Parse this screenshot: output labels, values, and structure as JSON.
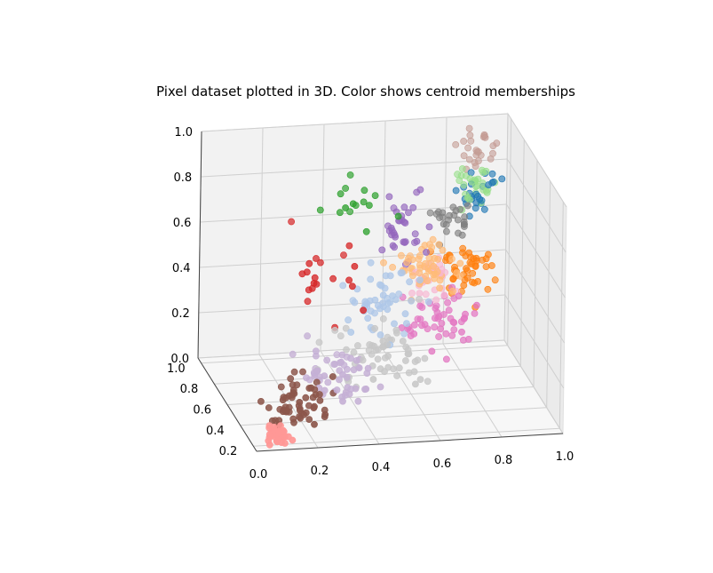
{
  "chart_data": {
    "type": "scatter",
    "projection": "3d",
    "title": "Pixel dataset plotted in 3D. Color shows centroid memberships",
    "xlabel": "",
    "ylabel": "",
    "zlabel": "",
    "grid": true,
    "xlim": [
      0.0,
      1.0
    ],
    "ylim": [
      0.15,
      1.05
    ],
    "zlim": [
      0.0,
      1.0
    ],
    "xticks": [
      "0.0",
      "0.2",
      "0.4",
      "0.6",
      "0.8",
      "1.0"
    ],
    "yticks": [
      "0.2",
      "0.4",
      "0.6",
      "0.8",
      "1.0"
    ],
    "zticks": [
      "0.0",
      "0.2",
      "0.4",
      "0.6",
      "0.8",
      "1.0"
    ],
    "series": [
      {
        "color": "#ff9896",
        "center": [
          0.08,
          0.2,
          0.04
        ],
        "spread": [
          0.02,
          0.03,
          0.02
        ],
        "count": 40
      },
      {
        "color": "#8c564b",
        "center": [
          0.18,
          0.32,
          0.12
        ],
        "spread": [
          0.05,
          0.06,
          0.05
        ],
        "count": 60
      },
      {
        "color": "#c5b0d5",
        "center": [
          0.32,
          0.42,
          0.2
        ],
        "spread": [
          0.07,
          0.08,
          0.06
        ],
        "count": 55
      },
      {
        "color": "#c7c7c7",
        "center": [
          0.48,
          0.5,
          0.22
        ],
        "spread": [
          0.09,
          0.08,
          0.07
        ],
        "count": 60
      },
      {
        "color": "#aec7e8",
        "center": [
          0.5,
          0.6,
          0.42
        ],
        "spread": [
          0.06,
          0.07,
          0.07
        ],
        "count": 50
      },
      {
        "color": "#e377c2",
        "center": [
          0.7,
          0.65,
          0.3
        ],
        "spread": [
          0.07,
          0.06,
          0.06
        ],
        "count": 50
      },
      {
        "color": "#ffbb78",
        "center": [
          0.66,
          0.72,
          0.5
        ],
        "spread": [
          0.05,
          0.06,
          0.05
        ],
        "count": 55
      },
      {
        "color": "#f7b6d2",
        "center": [
          0.7,
          0.74,
          0.42
        ],
        "spread": [
          0.04,
          0.05,
          0.05
        ],
        "count": 30
      },
      {
        "color": "#ff7f0e",
        "center": [
          0.82,
          0.8,
          0.44
        ],
        "spread": [
          0.05,
          0.05,
          0.06
        ],
        "count": 45
      },
      {
        "color": "#9467bd",
        "center": [
          0.6,
          0.78,
          0.65
        ],
        "spread": [
          0.04,
          0.05,
          0.07
        ],
        "count": 35
      },
      {
        "color": "#7f7f7f",
        "center": [
          0.78,
          0.86,
          0.64
        ],
        "spread": [
          0.03,
          0.04,
          0.04
        ],
        "count": 25
      },
      {
        "color": "#1f77b4",
        "center": [
          0.88,
          0.9,
          0.72
        ],
        "spread": [
          0.03,
          0.03,
          0.04
        ],
        "count": 25
      },
      {
        "color": "#98df8a",
        "center": [
          0.86,
          0.9,
          0.78
        ],
        "spread": [
          0.03,
          0.03,
          0.04
        ],
        "count": 30
      },
      {
        "color": "#c49c94",
        "center": [
          0.88,
          0.94,
          0.9
        ],
        "spread": [
          0.03,
          0.03,
          0.05
        ],
        "count": 25
      },
      {
        "color": "#2ca02c",
        "center": [
          0.45,
          0.7,
          0.82
        ],
        "spread": [
          0.06,
          0.06,
          0.05
        ],
        "count": 15
      },
      {
        "color": "#d62728",
        "center": [
          0.3,
          0.55,
          0.55
        ],
        "spread": [
          0.06,
          0.07,
          0.1
        ],
        "count": 20
      }
    ]
  }
}
